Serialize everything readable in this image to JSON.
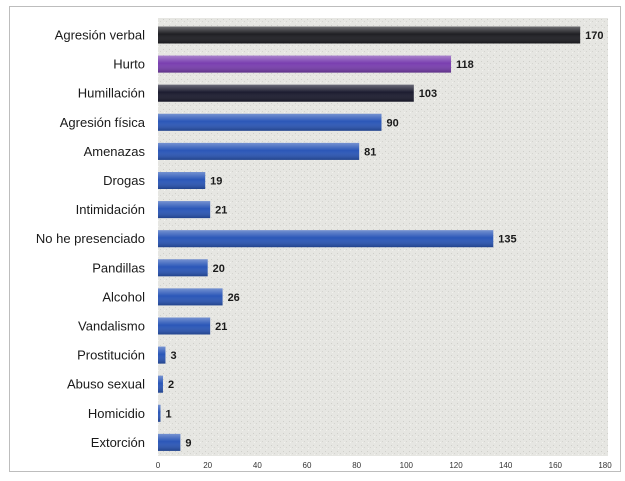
{
  "chart_data": {
    "type": "bar",
    "orientation": "horizontal",
    "categories": [
      "Agresión verbal",
      "Hurto",
      "Humillación",
      "Agresión física",
      "Amenazas",
      "Drogas",
      "Intimidación",
      "No he presenciado",
      "Pandillas",
      "Alcohol",
      "Vandalismo",
      "Prostitución",
      "Abuso sexual",
      "Homicidio",
      "Extorción"
    ],
    "values": [
      170,
      118,
      103,
      90,
      81,
      19,
      21,
      135,
      20,
      26,
      21,
      3,
      2,
      1,
      9
    ],
    "bar_colors": [
      "#1f1f24",
      "#7a3fb0",
      "#1c1c30",
      "#2b57b8",
      "#2b57b8",
      "#2b57b8",
      "#2b57b8",
      "#2b57b8",
      "#2b57b8",
      "#2b57b8",
      "#2b57b8",
      "#2b57b8",
      "#2b57b8",
      "#2b57b8",
      "#2b57b8"
    ],
    "xlim": [
      0,
      180
    ],
    "xticks": [
      0,
      20,
      40,
      60,
      80,
      100,
      120,
      140,
      160,
      180
    ],
    "title": "",
    "xlabel": "",
    "ylabel": "",
    "grid": false,
    "plot_background": "#e8e8e4"
  }
}
